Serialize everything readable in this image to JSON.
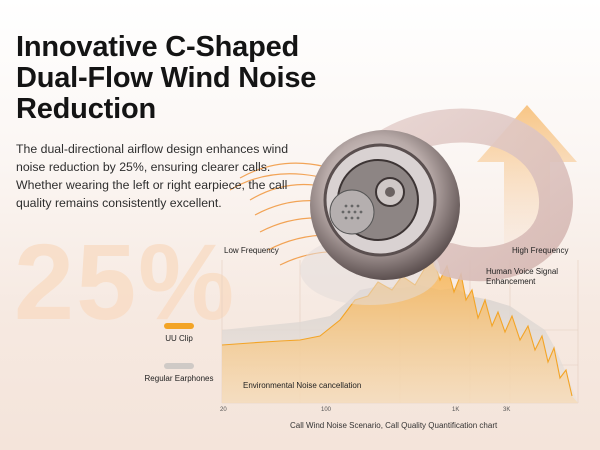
{
  "headline": "Innovative C-Shaped Dual-Flow Wind Noise Reduction",
  "description": "The dual-directional airflow design enhances wind noise reduction by 25%, ensuring clearer calls. Whether wearing the left or right earpiece, the call quality remains consistently excellent.",
  "big_stat": "25%",
  "colors": {
    "accent": "#f3a426",
    "gray_series": "#cfcac6",
    "watermark": "#f9ddc6"
  },
  "chart": {
    "low_label": "Low Frequency",
    "high_label": "High Frequency",
    "voice_label": "Human Voice Signal Enhancement",
    "noise_label": "Environmental Noise cancellation",
    "caption": "Call Wind Noise Scenario, Call Quality Quantification chart",
    "ticks": [
      "20",
      "100",
      "1K",
      "3K"
    ]
  },
  "legend": [
    {
      "label": "UU Clip",
      "color": "#f3a426"
    },
    {
      "label": "Regular Earphones",
      "color": "#cfcac6"
    }
  ],
  "icons": [
    "earbud-image",
    "up-arrow-watermark",
    "airflow-lines"
  ]
}
